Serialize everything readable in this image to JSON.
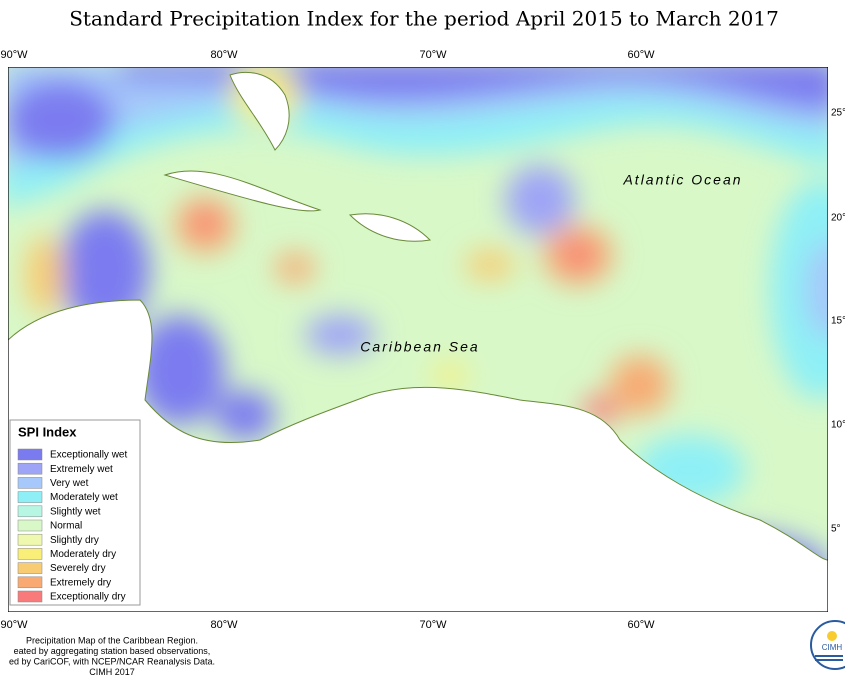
{
  "title": "Standard Precipitation Index for the period April 2015 to March 2017",
  "map_labels": [
    "Atlantic Ocean",
    "Caribbean Sea"
  ],
  "top_ticks": [
    "90°W",
    "80°W",
    "70°W",
    "60°W"
  ],
  "bottom_ticks": [
    "90°W",
    "80°W",
    "70°W",
    "60°W"
  ],
  "right_ticks": [
    "25°",
    "20°",
    "15°",
    "10°",
    "5°"
  ],
  "legend": {
    "title": "SPI Index",
    "items": [
      {
        "label": "Exceptionally wet",
        "color": "#7b7bf0"
      },
      {
        "label": "Extremely wet",
        "color": "#9ea4f6"
      },
      {
        "label": "Very wet",
        "color": "#a6c8fa"
      },
      {
        "label": "Moderately wet",
        "color": "#8ef0f6"
      },
      {
        "label": "Slightly wet",
        "color": "#b6f6e2"
      },
      {
        "label": "Normal",
        "color": "#d8f8c8"
      },
      {
        "label": "Slightly dry",
        "color": "#eef8ae"
      },
      {
        "label": "Moderately dry",
        "color": "#f8ee78"
      },
      {
        "label": "Severely dry",
        "color": "#f8cc72"
      },
      {
        "label": "Extremely dry",
        "color": "#f8aa72"
      },
      {
        "label": "Exceptionally dry",
        "color": "#f87a7a"
      }
    ]
  },
  "footer": [
    "Precipitation Map of the Caribbean Region.",
    "eated by aggregating station based observations,",
    "ed by CariCOF, with NCEP/NCAR Reanalysis Data.",
    "CIMH 2017"
  ],
  "logo": "CIMH"
}
